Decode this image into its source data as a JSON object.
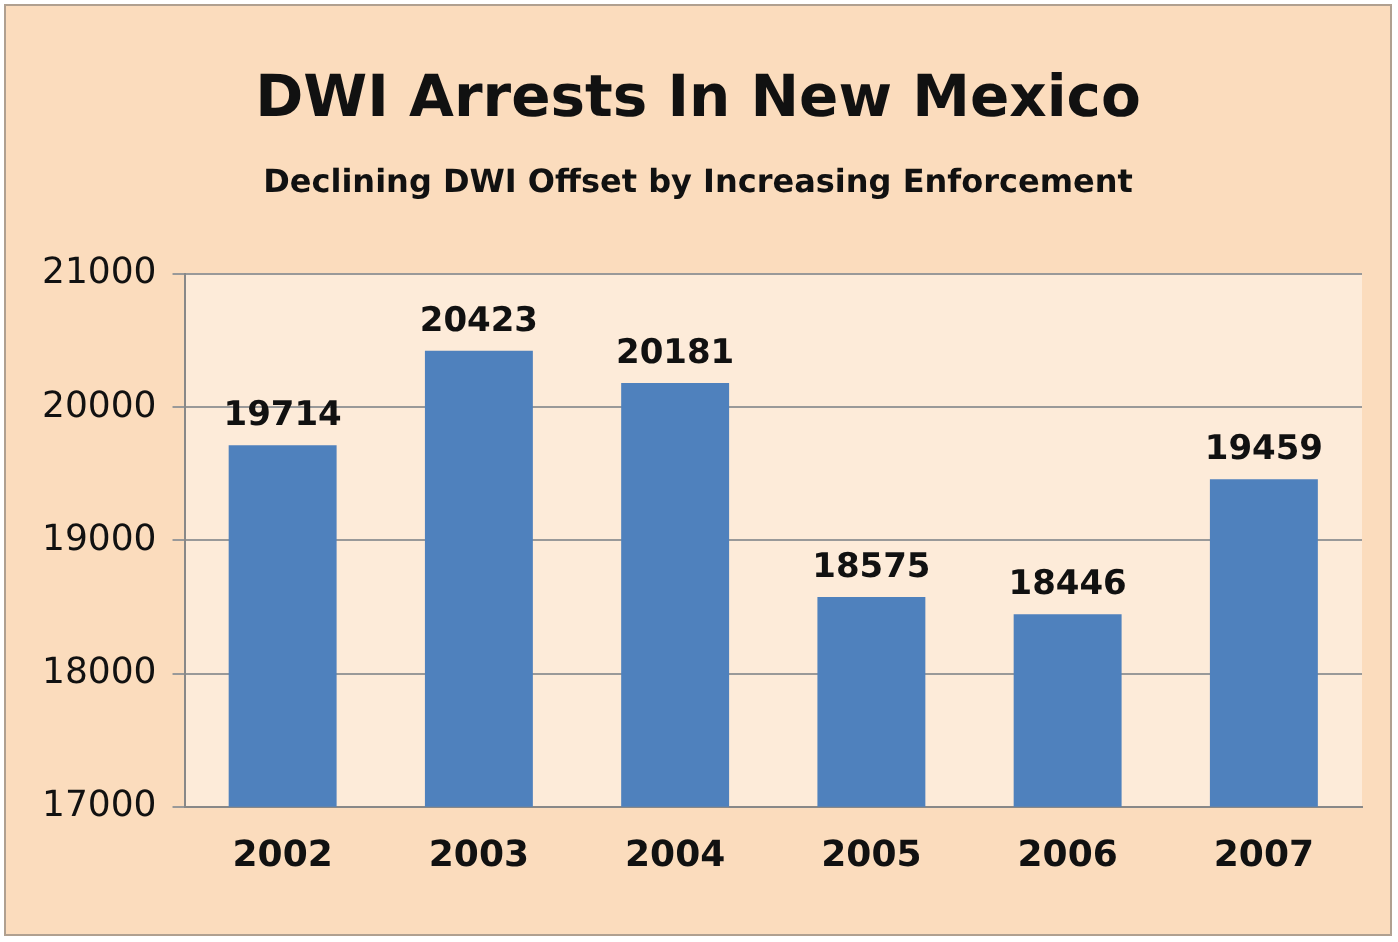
{
  "chart_data": {
    "type": "bar",
    "title": "DWI Arrests In New Mexico",
    "subtitle": "Declining DWI Offset by Increasing Enforcement",
    "categories": [
      "2002",
      "2003",
      "2004",
      "2005",
      "2006",
      "2007"
    ],
    "values": [
      19714,
      20423,
      20181,
      18575,
      18446,
      19459
    ],
    "color": "#4f81bd",
    "ylim": [
      17000,
      21000
    ],
    "yticks": [
      17000,
      18000,
      19000,
      20000,
      21000
    ],
    "grid": "y",
    "data_labels": true
  }
}
